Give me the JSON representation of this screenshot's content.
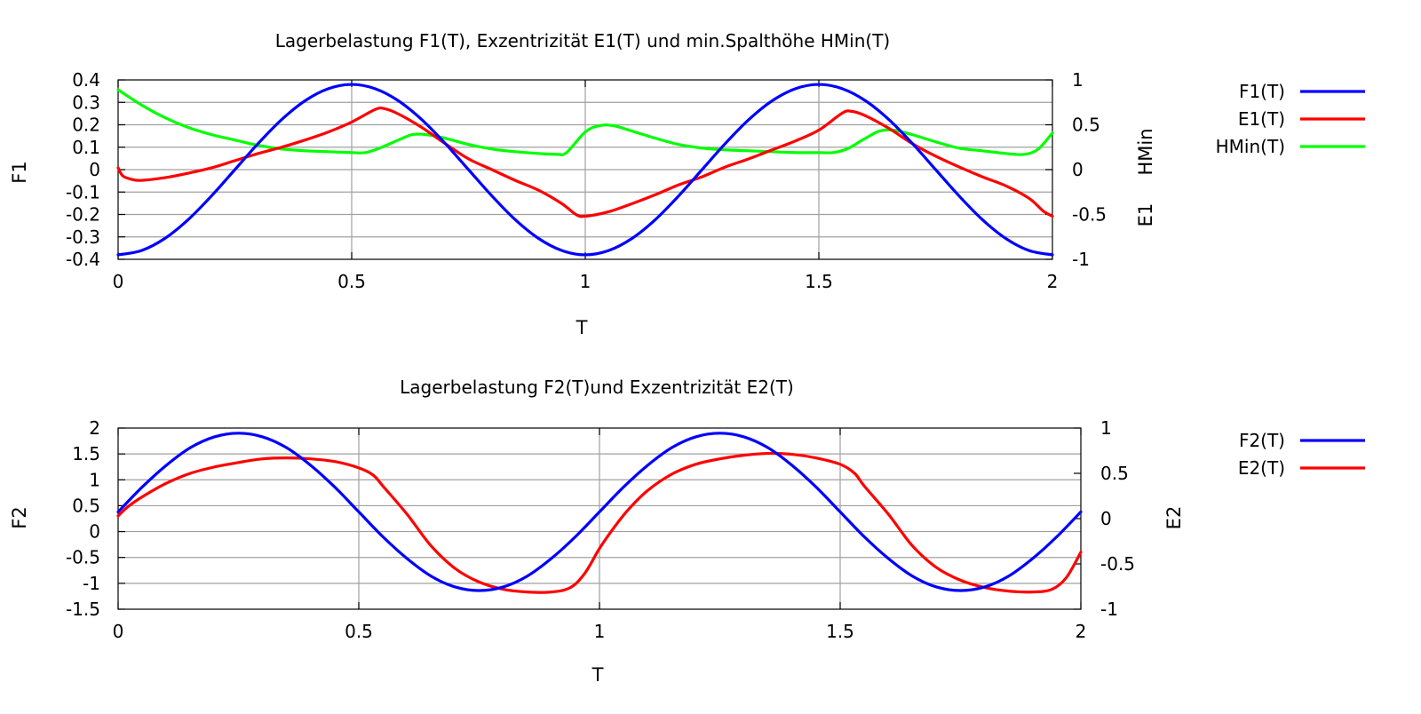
{
  "chart_data": [
    {
      "type": "line",
      "title": "Lagerbelastung F1(T), Exzentrizität E1(T) und min.Spalthöhe HMin(T)",
      "xlabel": "T",
      "ylabel": "F1",
      "y2label_left": "E1",
      "y2label_right": "HMin",
      "xlim": [
        0,
        2
      ],
      "ylim": [
        -0.4,
        0.4
      ],
      "y2lim": [
        -1,
        1
      ],
      "x_ticks": [
        0,
        0.5,
        1,
        1.5,
        2
      ],
      "x_tick_labels": [
        "0",
        "0.5",
        "1",
        "1.5",
        "2"
      ],
      "y_ticks": [
        -0.4,
        -0.3,
        -0.2,
        -0.1,
        0,
        0.1,
        0.2,
        0.3,
        0.4
      ],
      "y_tick_labels": [
        "-0.4",
        "-0.3",
        "-0.2",
        "-0.1",
        "0",
        "0.1",
        "0.2",
        "0.3",
        "0.4"
      ],
      "y2_ticks": [
        -1,
        -0.5,
        0,
        0.5,
        1
      ],
      "y2_tick_labels": [
        "-1",
        "-0.5",
        "0",
        "0.5",
        "1"
      ],
      "grid": true,
      "legend_position": "right",
      "series": [
        {
          "name": "F1(T)",
          "color": "#0000ff",
          "axis": "y",
          "x": [
            0,
            0.05,
            0.1,
            0.15,
            0.2,
            0.25,
            0.3,
            0.35,
            0.4,
            0.45,
            0.5,
            0.55,
            0.6,
            0.65,
            0.7,
            0.75,
            0.8,
            0.85,
            0.9,
            0.95,
            1,
            1.05,
            1.1,
            1.15,
            1.2,
            1.25,
            1.3,
            1.35,
            1.4,
            1.45,
            1.5,
            1.55,
            1.6,
            1.65,
            1.7,
            1.75,
            1.8,
            1.85,
            1.9,
            1.95,
            2
          ],
          "y": [
            -0.38,
            -0.361,
            -0.307,
            -0.223,
            -0.117,
            0,
            0.117,
            0.223,
            0.307,
            0.361,
            0.38,
            0.361,
            0.307,
            0.223,
            0.117,
            0,
            -0.117,
            -0.223,
            -0.307,
            -0.361,
            -0.38,
            -0.361,
            -0.307,
            -0.223,
            -0.117,
            0,
            0.117,
            0.223,
            0.307,
            0.361,
            0.38,
            0.361,
            0.307,
            0.223,
            0.117,
            0,
            -0.117,
            -0.223,
            -0.307,
            -0.361,
            -0.38
          ]
        },
        {
          "name": "E1(T)",
          "color": "#ff0000",
          "axis": "y2",
          "x": [
            0,
            0.01,
            0.03,
            0.05,
            0.1,
            0.15,
            0.2,
            0.25,
            0.3,
            0.35,
            0.4,
            0.45,
            0.5,
            0.55,
            0.57,
            0.6,
            0.65,
            0.7,
            0.75,
            0.8,
            0.85,
            0.9,
            0.95,
            0.98,
            1,
            1.05,
            1.1,
            1.15,
            1.2,
            1.25,
            1.3,
            1.35,
            1.4,
            1.45,
            1.5,
            1.55,
            1.57,
            1.6,
            1.65,
            1.7,
            1.75,
            1.8,
            1.85,
            1.9,
            1.95,
            1.98,
            2
          ],
          "y": [
            0.02,
            -0.07,
            -0.11,
            -0.12,
            -0.09,
            -0.04,
            0.02,
            0.1,
            0.18,
            0.25,
            0.33,
            0.42,
            0.53,
            0.67,
            0.68,
            0.62,
            0.47,
            0.29,
            0.12,
            0,
            -0.12,
            -0.23,
            -0.38,
            -0.5,
            -0.52,
            -0.47,
            -0.38,
            -0.28,
            -0.17,
            -0.08,
            0.03,
            0.12,
            0.22,
            0.32,
            0.44,
            0.63,
            0.65,
            0.6,
            0.46,
            0.29,
            0.15,
            0.03,
            -0.08,
            -0.18,
            -0.32,
            -0.46,
            -0.52
          ]
        },
        {
          "name": "HMin(T)",
          "color": "#00ff00",
          "axis": "y2",
          "x": [
            0,
            0.05,
            0.1,
            0.15,
            0.2,
            0.25,
            0.3,
            0.35,
            0.4,
            0.45,
            0.5,
            0.53,
            0.56,
            0.6,
            0.63,
            0.66,
            0.7,
            0.75,
            0.8,
            0.85,
            0.9,
            0.94,
            0.96,
            1,
            1.03,
            1.06,
            1.1,
            1.15,
            1.2,
            1.25,
            1.3,
            1.35,
            1.4,
            1.45,
            1.5,
            1.53,
            1.56,
            1.6,
            1.63,
            1.66,
            1.7,
            1.75,
            1.8,
            1.85,
            1.9,
            1.94,
            1.97,
            2
          ],
          "y": [
            0.89,
            0.72,
            0.58,
            0.47,
            0.39,
            0.33,
            0.27,
            0.23,
            0.21,
            0.2,
            0.19,
            0.19,
            0.24,
            0.33,
            0.39,
            0.39,
            0.35,
            0.28,
            0.23,
            0.2,
            0.18,
            0.17,
            0.19,
            0.42,
            0.49,
            0.49,
            0.43,
            0.35,
            0.28,
            0.24,
            0.22,
            0.21,
            0.2,
            0.19,
            0.19,
            0.19,
            0.23,
            0.35,
            0.43,
            0.44,
            0.39,
            0.31,
            0.24,
            0.21,
            0.18,
            0.17,
            0.23,
            0.41
          ]
        }
      ]
    },
    {
      "type": "line",
      "title": "Lagerbelastung F2(T)und Exzentrizität E2(T)",
      "xlabel": "T",
      "ylabel": "F2",
      "y2label": "E2",
      "xlim": [
        0,
        2
      ],
      "ylim": [
        -1.5,
        2
      ],
      "y2lim": [
        -1,
        1
      ],
      "x_ticks": [
        0,
        0.5,
        1,
        1.5,
        2
      ],
      "x_tick_labels": [
        "0",
        "0.5",
        "1",
        "1.5",
        "2"
      ],
      "y_ticks": [
        -1.5,
        -1,
        -0.5,
        0,
        0.5,
        1,
        1.5,
        2
      ],
      "y_tick_labels": [
        "-1.5",
        "-1",
        "-0.5",
        "0",
        "0.5",
        "1",
        "1.5",
        "2"
      ],
      "y2_ticks": [
        -1,
        -0.5,
        0,
        0.5,
        1
      ],
      "y2_tick_labels": [
        "-1",
        "-0.5",
        "0",
        "0.5",
        "1"
      ],
      "grid": true,
      "legend_position": "right",
      "series": [
        {
          "name": "F2(T)",
          "color": "#0000ff",
          "axis": "y",
          "x": [
            0,
            0.05,
            0.1,
            0.15,
            0.2,
            0.25,
            0.3,
            0.35,
            0.4,
            0.45,
            0.5,
            0.55,
            0.6,
            0.65,
            0.7,
            0.75,
            0.8,
            0.85,
            0.9,
            0.95,
            1,
            1.05,
            1.1,
            1.15,
            1.2,
            1.25,
            1.3,
            1.35,
            1.4,
            1.45,
            1.5,
            1.55,
            1.6,
            1.65,
            1.7,
            1.75,
            1.8,
            1.85,
            1.9,
            1.95,
            2
          ],
          "y": [
            0.38,
            0.86,
            1.28,
            1.62,
            1.83,
            1.9,
            1.83,
            1.62,
            1.28,
            0.86,
            0.38,
            -0.1,
            -0.52,
            -0.86,
            -1.07,
            -1.14,
            -1.07,
            -0.86,
            -0.52,
            -0.1,
            0.38,
            0.86,
            1.28,
            1.62,
            1.83,
            1.9,
            1.83,
            1.62,
            1.28,
            0.86,
            0.38,
            -0.1,
            -0.52,
            -0.86,
            -1.07,
            -1.14,
            -1.07,
            -0.86,
            -0.52,
            -0.1,
            0.38
          ]
        },
        {
          "name": "E2(T)",
          "color": "#ff0000",
          "axis": "y2",
          "x": [
            0,
            0.02,
            0.05,
            0.1,
            0.15,
            0.2,
            0.25,
            0.3,
            0.35,
            0.4,
            0.45,
            0.5,
            0.53,
            0.55,
            0.6,
            0.65,
            0.7,
            0.75,
            0.8,
            0.85,
            0.9,
            0.94,
            0.97,
            1,
            1.03,
            1.06,
            1.1,
            1.15,
            1.2,
            1.25,
            1.3,
            1.35,
            1.4,
            1.45,
            1.5,
            1.53,
            1.55,
            1.6,
            1.65,
            1.7,
            1.75,
            1.8,
            1.85,
            1.9,
            1.94,
            1.97,
            2
          ],
          "y": [
            0.03,
            0.13,
            0.24,
            0.39,
            0.5,
            0.57,
            0.62,
            0.66,
            0.67,
            0.66,
            0.63,
            0.56,
            0.48,
            0.36,
            0.05,
            -0.3,
            -0.55,
            -0.7,
            -0.78,
            -0.81,
            -0.81,
            -0.76,
            -0.6,
            -0.33,
            -0.1,
            0.1,
            0.31,
            0.49,
            0.6,
            0.66,
            0.7,
            0.72,
            0.71,
            0.67,
            0.6,
            0.5,
            0.36,
            0.05,
            -0.3,
            -0.54,
            -0.68,
            -0.76,
            -0.8,
            -0.81,
            -0.78,
            -0.65,
            -0.37
          ]
        }
      ]
    }
  ]
}
